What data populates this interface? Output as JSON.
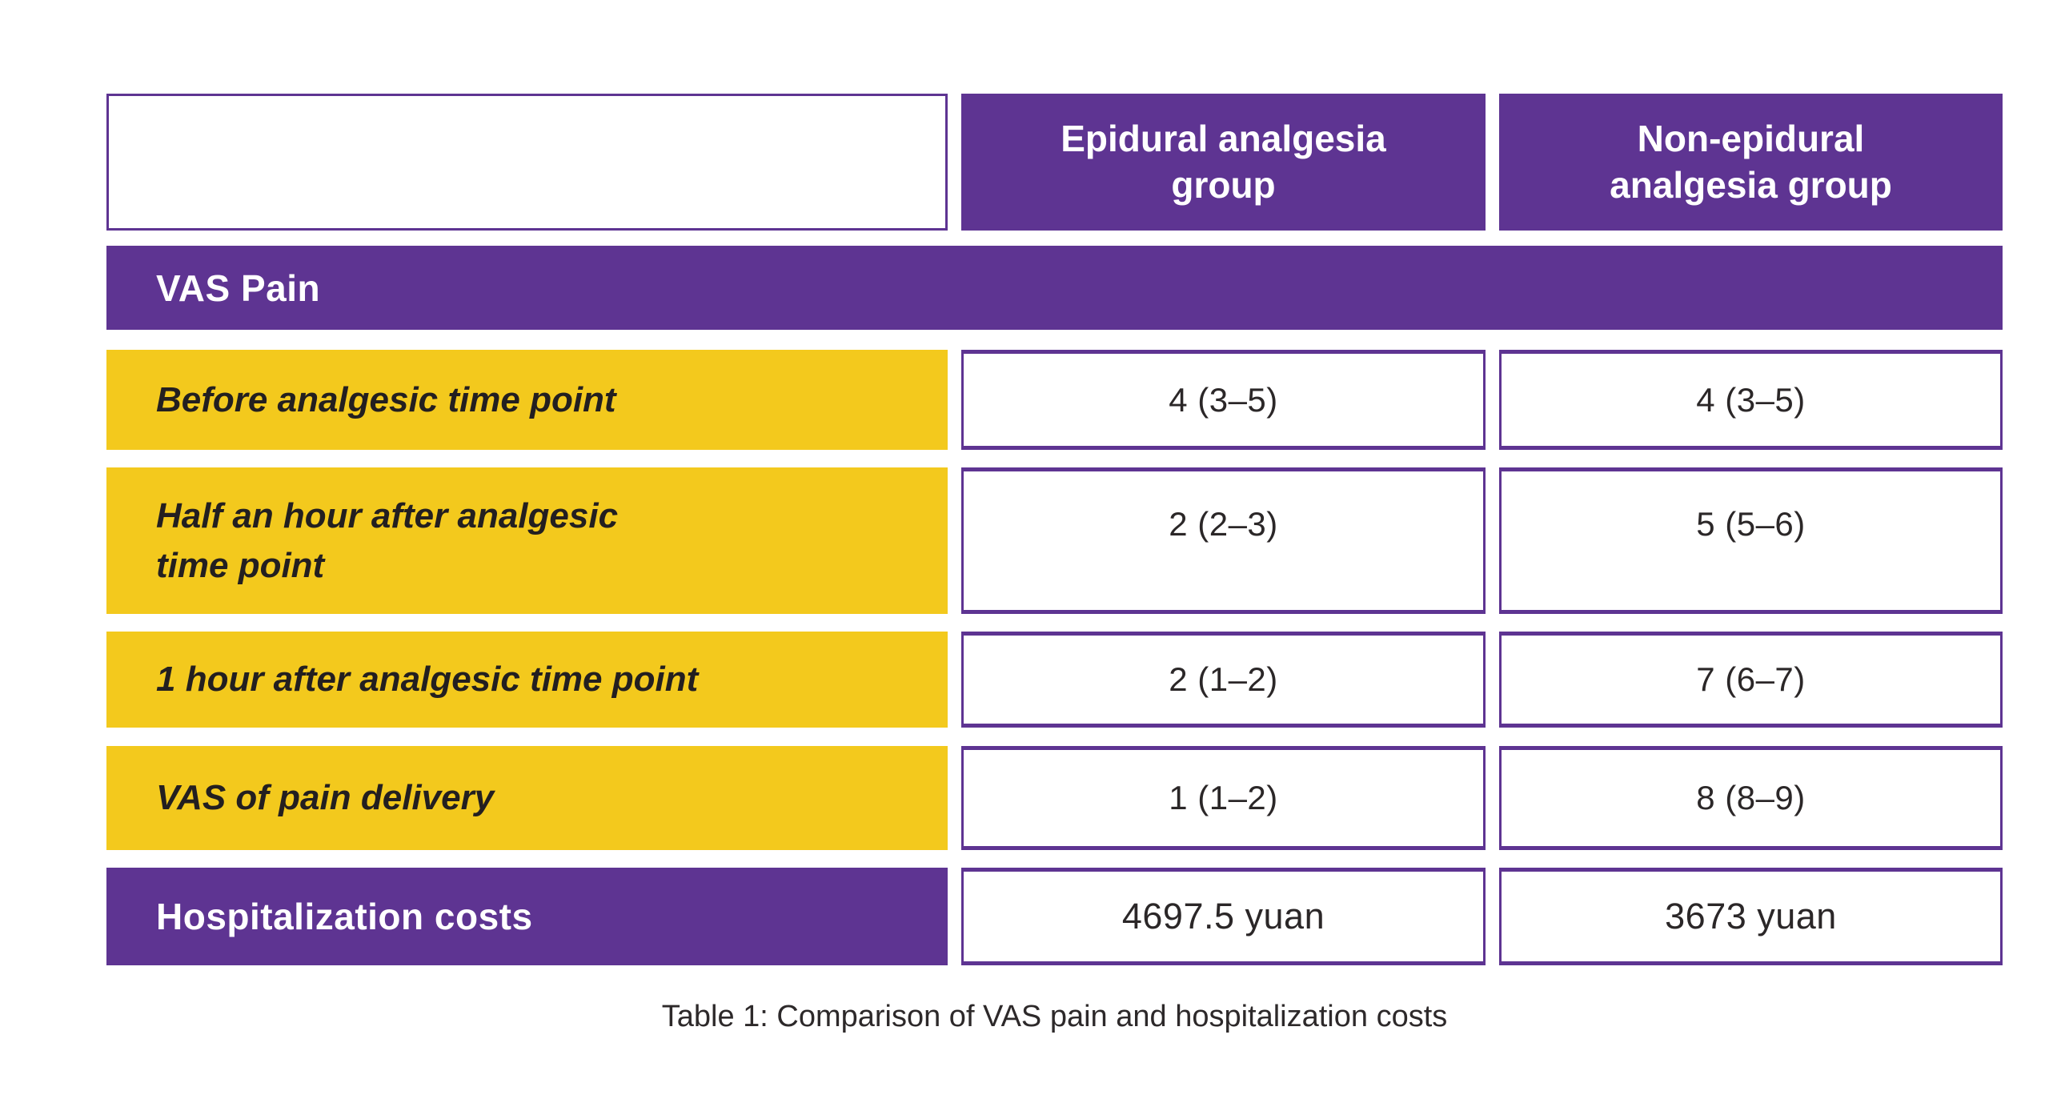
{
  "colors": {
    "purple": "#5e3492",
    "yellow": "#f3c91d",
    "text_dark": "#231f20",
    "white": "#ffffff"
  },
  "table": {
    "column_headers": [
      "Epidural analgesia\ngroup",
      "Non-epidural\nanalgesia group"
    ],
    "section_header": "VAS Pain",
    "rows": [
      {
        "label": "Before analgesic time point",
        "epidural": "4 (3–5)",
        "non_epidural": "4 (3–5)"
      },
      {
        "label": "Half an hour after analgesic\ntime point",
        "epidural": "2 (2–3)",
        "non_epidural": "5 (5–6)"
      },
      {
        "label": "1 hour after analgesic time point",
        "epidural": "2 (1–2)",
        "non_epidural": "7 (6–7)"
      },
      {
        "label": "VAS of pain delivery",
        "epidural": "1 (1–2)",
        "non_epidural": "8 (8–9)"
      }
    ],
    "cost_row": {
      "label": "Hospitalization costs",
      "epidural": "4697.5 yuan",
      "non_epidural": "3673 yuan"
    },
    "caption": "Table 1: Comparison of VAS pain and hospitalization costs"
  },
  "chart_data": {
    "type": "table",
    "title": "Table 1: Comparison of VAS pain and hospitalization costs",
    "columns": [
      "",
      "Epidural analgesia group",
      "Non-epidural analgesia group"
    ],
    "section": "VAS Pain",
    "rows": [
      [
        "Before analgesic time point",
        "4 (3–5)",
        "4 (3–5)"
      ],
      [
        "Half an hour after analgesic time point",
        "2 (2–3)",
        "5 (5–6)"
      ],
      [
        "1 hour after analgesic time point",
        "2 (1–2)",
        "7 (6–7)"
      ],
      [
        "VAS of pain delivery",
        "1 (1–2)",
        "8 (8–9)"
      ],
      [
        "Hospitalization costs",
        "4697.5 yuan",
        "3673 yuan"
      ]
    ],
    "legend_position": "none",
    "grid": false
  }
}
